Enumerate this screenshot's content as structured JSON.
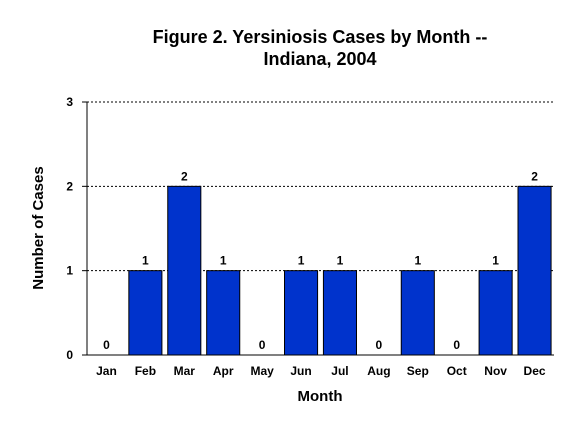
{
  "chart_data": {
    "type": "bar",
    "title_lines": [
      "Figure 2.  Yersiniosis Cases by Month --",
      "Indiana, 2004"
    ],
    "xlabel": "Month",
    "ylabel": "Number of Cases",
    "categories": [
      "Jan",
      "Feb",
      "Mar",
      "Apr",
      "May",
      "Jun",
      "Jul",
      "Aug",
      "Sep",
      "Oct",
      "Nov",
      "Dec"
    ],
    "values": [
      0,
      1,
      2,
      1,
      0,
      1,
      1,
      0,
      1,
      0,
      1,
      2
    ],
    "ylim": [
      0,
      3
    ],
    "yticks": [
      0,
      1,
      2,
      3
    ],
    "grid": "horizontal-dotted",
    "bar_color": "#0033CC",
    "data_labels": true
  }
}
